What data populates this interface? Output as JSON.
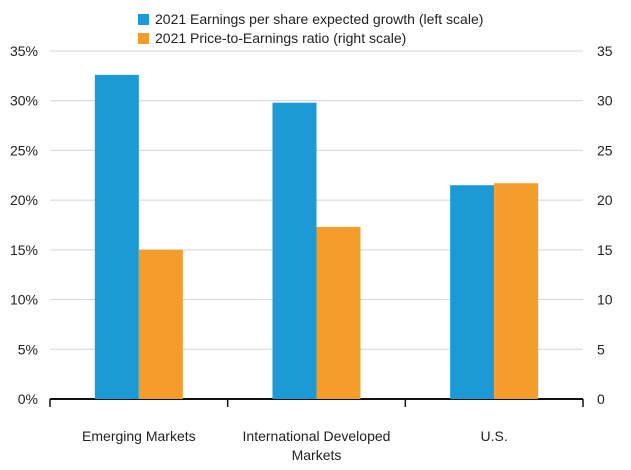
{
  "chart_data": {
    "type": "bar",
    "categories": [
      [
        "Emerging Markets"
      ],
      [
        "International Developed",
        "Markets"
      ],
      [
        "U.S."
      ]
    ],
    "series": [
      {
        "name": "2021 Earnings per share expected growth (left scale)",
        "axis": "left",
        "color": "#1b9ad6",
        "values": [
          32.6,
          29.8,
          21.5
        ]
      },
      {
        "name": "2021 Price-to-Earnings ratio (right scale)",
        "axis": "right",
        "color": "#f59d2a",
        "values": [
          15.0,
          17.3,
          21.7
        ]
      }
    ],
    "left_axis": {
      "ylim": [
        0,
        35
      ],
      "ticks": [
        "0%",
        "5%",
        "10%",
        "15%",
        "20%",
        "25%",
        "30%",
        "35%"
      ]
    },
    "right_axis": {
      "ylim": [
        0,
        35
      ],
      "ticks": [
        "0",
        "5",
        "10",
        "15",
        "20",
        "25",
        "30",
        "35"
      ]
    },
    "grid": "horizontal",
    "legend_position": "top"
  }
}
